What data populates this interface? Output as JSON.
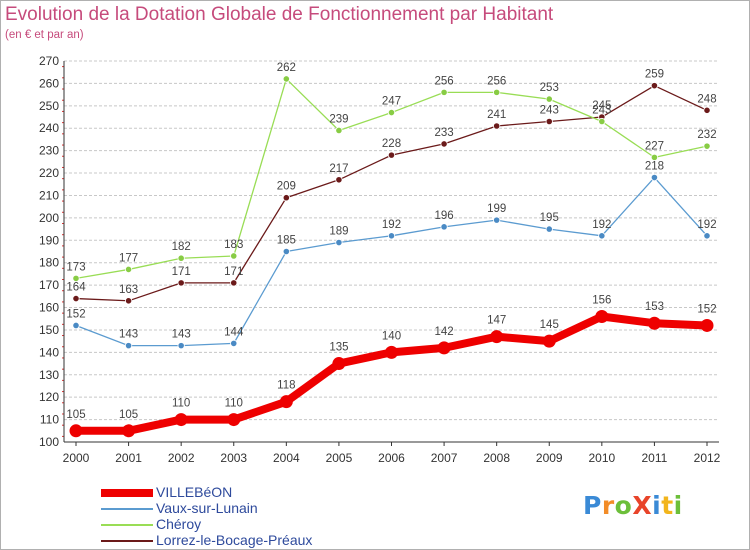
{
  "title": "Evolution de la Dotation Globale de Fonctionnement par Habitant",
  "subtitle": "(en € et par an)",
  "logo": {
    "text": "ProXiti",
    "colors": [
      "#3a8ad6",
      "#f28c28",
      "#6cbf3a",
      "#e8442a",
      "#3a8ad6",
      "#f2b51c",
      "#6cbf3a"
    ]
  },
  "colors": {
    "title": "#c64b7c",
    "axis": "#333333",
    "grid": "#c8c8c8",
    "value_label": "#444444",
    "legend_text": "#2e4a9c"
  },
  "chart_data": {
    "type": "line",
    "title": "Evolution de la Dotation Globale de Fonctionnement par Habitant",
    "subtitle": "(en € et par an)",
    "xlabel": "",
    "ylabel": "",
    "x": [
      "2000",
      "2001",
      "2002",
      "2003",
      "2004",
      "2005",
      "2006",
      "2007",
      "2008",
      "2009",
      "2010",
      "2011",
      "2012"
    ],
    "ylim": [
      100,
      270
    ],
    "yticks": [
      100,
      110,
      120,
      130,
      140,
      150,
      160,
      170,
      180,
      190,
      200,
      210,
      220,
      230,
      240,
      250,
      260,
      270
    ],
    "grid": "horizontal",
    "legend_position": "bottom-left",
    "series": [
      {
        "name": "Lorrez-le-Bocage-Préaux",
        "color": "#6b1a1a",
        "marker": "#6b1a1a",
        "weight": "thin",
        "values": [
          164,
          163,
          171,
          171,
          209,
          217,
          228,
          233,
          241,
          243,
          245,
          259,
          248
        ]
      },
      {
        "name": "Chéroy",
        "color": "#99dd55",
        "marker": "#88cc44",
        "weight": "thin",
        "values": [
          173,
          177,
          182,
          183,
          262,
          239,
          247,
          256,
          256,
          253,
          243,
          227,
          232
        ]
      },
      {
        "name": "Vaux-sur-Lunain",
        "color": "#5b9bd0",
        "marker": "#4a8ac4",
        "weight": "thin",
        "values": [
          152,
          143,
          143,
          144,
          185,
          189,
          192,
          196,
          199,
          195,
          192,
          218,
          192
        ]
      },
      {
        "name": "VILLEBéON",
        "color": "#ee0000",
        "marker": "#ee0000",
        "weight": "thick",
        "values": [
          105,
          105,
          110,
          110,
          118,
          135,
          140,
          142,
          147,
          145,
          156,
          153,
          152
        ]
      }
    ],
    "legend_order": [
      "VILLEBéON",
      "Vaux-sur-Lunain",
      "Chéroy",
      "Lorrez-le-Bocage-Préaux"
    ]
  }
}
